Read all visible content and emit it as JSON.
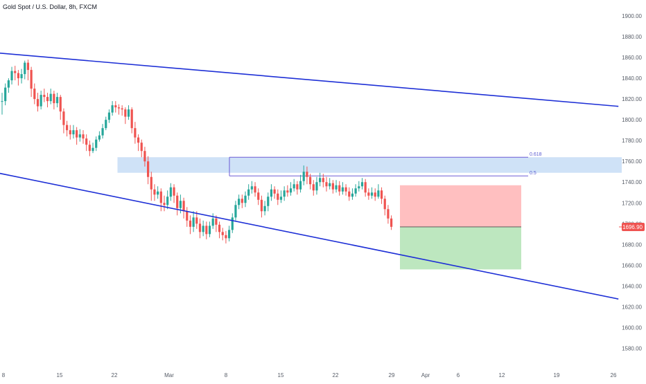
{
  "header": {
    "title": "Gold Spot / U.S. Dollar, 8h, FXCM"
  },
  "colors": {
    "up": "#26a69a",
    "down": "#ef5350",
    "channel": "#1d2fd6",
    "resistance_zone": "#cfe2f7",
    "fib_line": "#6b5bd6",
    "stop_zone": "#ffbfc0",
    "target_zone": "#bde7bf",
    "price_label": "#ef5350"
  },
  "chart_data": {
    "type": "candlestick",
    "title": "Gold Spot / U.S. Dollar, 8h, FXCM",
    "y_axis": {
      "ticks": [
        1580,
        1600,
        1620,
        1640,
        1660,
        1680,
        1700,
        1720,
        1740,
        1760,
        1780,
        1800,
        1820,
        1840,
        1860,
        1880,
        1900
      ],
      "tick_labels": [
        "1580.00",
        "1600.00",
        "1620.00",
        "1640.00",
        "1660.00",
        "1680.00",
        "1700.00",
        "1720.00",
        "1740.00",
        "1760.00",
        "1780.00",
        "1800.00",
        "1820.00",
        "1840.00",
        "1860.00",
        "1880.00",
        "1900.00"
      ],
      "range": [
        1569,
        1910
      ],
      "side": "right"
    },
    "x_axis": {
      "tick_labels": [
        "8",
        "15",
        "22",
        "Mar",
        "8",
        "15",
        "22",
        "29",
        "Apr",
        "6",
        "12",
        "19",
        "26"
      ]
    },
    "last_price": {
      "value": 1696.9,
      "label": "1696.90"
    },
    "channel_lines": [
      {
        "name": "upper",
        "points": [
          [
            0,
            1864
          ],
          [
            175,
            1817
          ]
        ]
      },
      {
        "name": "lower",
        "points": [
          [
            0,
            1748
          ],
          [
            175,
            1637
          ]
        ]
      }
    ],
    "resistance_zone": {
      "from_index": 36,
      "price_low": 1749,
      "price_high": 1764
    },
    "fib_levels": [
      {
        "label": "0.618",
        "price": 1764
      },
      {
        "label": "0.5",
        "price": 1746
      }
    ],
    "position": {
      "entry": 1696.9,
      "stop": 1737,
      "target": 1656
    },
    "candles": [
      [
        1818,
        1818,
        1826,
        1805
      ],
      [
        1818,
        1831,
        1835,
        1814
      ],
      [
        1831,
        1838,
        1840,
        1826
      ],
      [
        1838,
        1847,
        1851,
        1834
      ],
      [
        1847,
        1845,
        1852,
        1838
      ],
      [
        1845,
        1840,
        1848,
        1833
      ],
      [
        1840,
        1844,
        1849,
        1835
      ],
      [
        1844,
        1855,
        1857,
        1839
      ],
      [
        1855,
        1848,
        1858,
        1838
      ],
      [
        1848,
        1830,
        1851,
        1822
      ],
      [
        1830,
        1820,
        1835,
        1815
      ],
      [
        1820,
        1813,
        1826,
        1808
      ],
      [
        1813,
        1824,
        1828,
        1810
      ],
      [
        1824,
        1822,
        1830,
        1817
      ],
      [
        1822,
        1818,
        1826,
        1812
      ],
      [
        1818,
        1825,
        1830,
        1815
      ],
      [
        1825,
        1816,
        1828,
        1810
      ],
      [
        1816,
        1822,
        1826,
        1812
      ],
      [
        1822,
        1808,
        1824,
        1800
      ],
      [
        1808,
        1795,
        1811,
        1787
      ],
      [
        1795,
        1790,
        1799,
        1784
      ],
      [
        1790,
        1786,
        1795,
        1781
      ],
      [
        1786,
        1790,
        1795,
        1782
      ],
      [
        1790,
        1783,
        1793,
        1776
      ],
      [
        1783,
        1786,
        1791,
        1779
      ],
      [
        1786,
        1782,
        1790,
        1777
      ],
      [
        1782,
        1776,
        1786,
        1770
      ],
      [
        1776,
        1770,
        1780,
        1765
      ],
      [
        1770,
        1773,
        1778,
        1768
      ],
      [
        1773,
        1781,
        1784,
        1770
      ],
      [
        1781,
        1785,
        1789,
        1779
      ],
      [
        1785,
        1792,
        1796,
        1782
      ],
      [
        1792,
        1800,
        1803,
        1790
      ],
      [
        1800,
        1807,
        1810,
        1797
      ],
      [
        1807,
        1814,
        1818,
        1804
      ],
      [
        1814,
        1812,
        1818,
        1807
      ],
      [
        1812,
        1811,
        1815,
        1805
      ],
      [
        1811,
        1810,
        1814,
        1804
      ],
      [
        1810,
        1803,
        1812,
        1796
      ],
      [
        1803,
        1810,
        1814,
        1800
      ],
      [
        1810,
        1792,
        1812,
        1787
      ],
      [
        1792,
        1783,
        1798,
        1777
      ],
      [
        1783,
        1778,
        1786,
        1770
      ],
      [
        1778,
        1770,
        1781,
        1764
      ],
      [
        1770,
        1760,
        1774,
        1755
      ],
      [
        1760,
        1745,
        1765,
        1738
      ],
      [
        1745,
        1733,
        1750,
        1722
      ],
      [
        1733,
        1728,
        1738,
        1722
      ],
      [
        1728,
        1731,
        1736,
        1724
      ],
      [
        1731,
        1720,
        1734,
        1712
      ],
      [
        1720,
        1718,
        1727,
        1712
      ],
      [
        1718,
        1726,
        1732,
        1714
      ],
      [
        1726,
        1735,
        1739,
        1722
      ],
      [
        1735,
        1727,
        1738,
        1720
      ],
      [
        1727,
        1715,
        1730,
        1708
      ],
      [
        1715,
        1722,
        1728,
        1710
      ],
      [
        1722,
        1712,
        1725,
        1705
      ],
      [
        1712,
        1703,
        1716,
        1697
      ],
      [
        1703,
        1697,
        1708,
        1690
      ],
      [
        1697,
        1706,
        1712,
        1692
      ],
      [
        1706,
        1700,
        1712,
        1695
      ],
      [
        1700,
        1692,
        1705,
        1686
      ],
      [
        1692,
        1698,
        1703,
        1688
      ],
      [
        1698,
        1690,
        1702,
        1685
      ],
      [
        1690,
        1698,
        1702,
        1687
      ],
      [
        1698,
        1705,
        1710,
        1695
      ],
      [
        1705,
        1699,
        1708,
        1692
      ],
      [
        1699,
        1692,
        1702,
        1686
      ],
      [
        1692,
        1689,
        1696,
        1684
      ],
      [
        1689,
        1686,
        1693,
        1681
      ],
      [
        1686,
        1694,
        1698,
        1683
      ],
      [
        1694,
        1706,
        1710,
        1691
      ],
      [
        1706,
        1718,
        1722,
        1703
      ],
      [
        1718,
        1724,
        1728,
        1714
      ],
      [
        1724,
        1720,
        1728,
        1715
      ],
      [
        1720,
        1727,
        1731,
        1716
      ],
      [
        1727,
        1733,
        1738,
        1723
      ],
      [
        1733,
        1736,
        1741,
        1729
      ],
      [
        1736,
        1730,
        1740,
        1726
      ],
      [
        1730,
        1723,
        1734,
        1718
      ],
      [
        1723,
        1712,
        1727,
        1706
      ],
      [
        1712,
        1717,
        1722,
        1708
      ],
      [
        1717,
        1726,
        1730,
        1712
      ],
      [
        1726,
        1733,
        1738,
        1722
      ],
      [
        1733,
        1729,
        1736,
        1724
      ],
      [
        1729,
        1723,
        1733,
        1718
      ],
      [
        1723,
        1726,
        1732,
        1720
      ],
      [
        1726,
        1732,
        1736,
        1722
      ],
      [
        1732,
        1730,
        1737,
        1726
      ],
      [
        1730,
        1734,
        1740,
        1727
      ],
      [
        1734,
        1738,
        1743,
        1731
      ],
      [
        1738,
        1733,
        1741,
        1728
      ],
      [
        1733,
        1741,
        1747,
        1730
      ],
      [
        1741,
        1750,
        1756,
        1737
      ],
      [
        1750,
        1745,
        1755,
        1738
      ],
      [
        1745,
        1738,
        1748,
        1733
      ],
      [
        1738,
        1732,
        1742,
        1727
      ],
      [
        1732,
        1740,
        1745,
        1728
      ],
      [
        1740,
        1744,
        1749,
        1736
      ],
      [
        1744,
        1740,
        1748,
        1735
      ],
      [
        1740,
        1736,
        1745,
        1731
      ],
      [
        1736,
        1739,
        1744,
        1733
      ],
      [
        1739,
        1733,
        1742,
        1729
      ],
      [
        1733,
        1737,
        1742,
        1730
      ],
      [
        1737,
        1731,
        1741,
        1727
      ],
      [
        1731,
        1735,
        1740,
        1728
      ],
      [
        1735,
        1731,
        1738,
        1727
      ],
      [
        1731,
        1726,
        1735,
        1722
      ],
      [
        1726,
        1729,
        1734,
        1723
      ],
      [
        1729,
        1734,
        1738,
        1726
      ],
      [
        1734,
        1736,
        1741,
        1731
      ],
      [
        1736,
        1740,
        1744,
        1733
      ],
      [
        1740,
        1730,
        1743,
        1726
      ],
      [
        1730,
        1727,
        1734,
        1723
      ],
      [
        1727,
        1730,
        1735,
        1724
      ],
      [
        1730,
        1726,
        1734,
        1722
      ],
      [
        1726,
        1732,
        1738,
        1724
      ],
      [
        1732,
        1724,
        1735,
        1719
      ],
      [
        1724,
        1714,
        1727,
        1708
      ],
      [
        1714,
        1705,
        1718,
        1700
      ],
      [
        1705,
        1697,
        1708,
        1694
      ]
    ]
  }
}
